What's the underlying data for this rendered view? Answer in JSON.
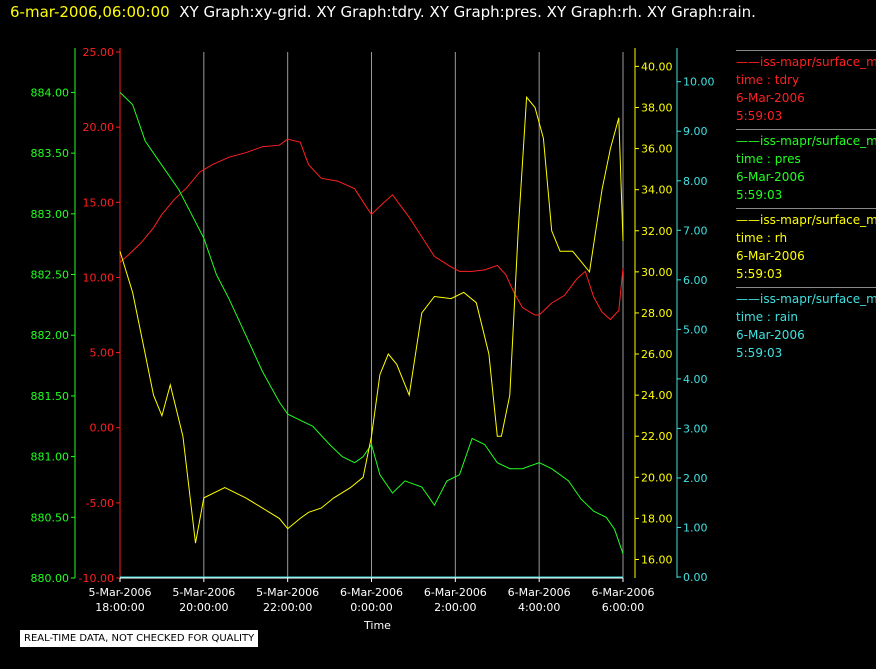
{
  "header": {
    "date_label": "6-mar-2006,06:00:00",
    "graph_labels": "XY Graph:xy-grid.  XY Graph:tdry.  XY Graph:pres.  XY Graph:rh.  XY Graph:rain."
  },
  "notice": "REAL-TIME DATA, NOT CHECKED FOR QUALITY",
  "legend": [
    {
      "line": "——iss-mapr/surface_m",
      "var": "time : tdry",
      "date": "6-Mar-2006",
      "time": "5:59:03",
      "color": "#ff2020"
    },
    {
      "line": "——iss-mapr/surface_m",
      "var": "time : pres",
      "date": "6-Mar-2006",
      "time": "5:59:03",
      "color": "#20ff20"
    },
    {
      "line": "——iss-mapr/surface_m",
      "var": "time : rh",
      "date": "6-Mar-2006",
      "time": "5:59:03",
      "color": "#ffff00"
    },
    {
      "line": "——iss-mapr/surface_m",
      "var": "time : rain",
      "date": "6-Mar-2006",
      "time": "5:59:03",
      "color": "#40e0e0"
    }
  ],
  "chart_data": {
    "type": "line",
    "xlabel": "Time",
    "x_ticks": [
      {
        "l1": "5-Mar-2006",
        "l2": "18:00:00",
        "h": 18
      },
      {
        "l1": "5-Mar-2006",
        "l2": "20:00:00",
        "h": 20
      },
      {
        "l1": "5-Mar-2006",
        "l2": "22:00:00",
        "h": 22
      },
      {
        "l1": "6-Mar-2006",
        "l2": "0:00:00",
        "h": 24
      },
      {
        "l1": "6-Mar-2006",
        "l2": "2:00:00",
        "h": 26
      },
      {
        "l1": "6-Mar-2006",
        "l2": "4:00:00",
        "h": 28
      },
      {
        "l1": "6-Mar-2006",
        "l2": "6:00:00",
        "h": 30
      }
    ],
    "xlim": [
      18,
      30
    ],
    "grid": true,
    "axes": {
      "pres": {
        "ticks": [
          "880.00",
          "880.50",
          "881.00",
          "881.50",
          "882.00",
          "882.50",
          "883.00",
          "883.50",
          "884.00"
        ],
        "lim": [
          880,
          884.333
        ],
        "color": "#20ff20"
      },
      "tdry": {
        "ticks": [
          "-10.00",
          "-5.00",
          "0.00",
          "5.00",
          "10.00",
          "15.00",
          "20.00",
          "25.00"
        ],
        "lim": [
          -10,
          25
        ],
        "color": "#ff2020"
      },
      "rh": {
        "ticks": [
          "16.00",
          "18.00",
          "20.00",
          "22.00",
          "24.00",
          "26.00",
          "28.00",
          "30.00",
          "32.00",
          "34.00",
          "36.00",
          "38.00",
          "40.00"
        ],
        "lim": [
          15.1,
          40.7
        ],
        "color": "#ffff00"
      },
      "rain": {
        "ticks": [
          "0.00",
          "1.00",
          "2.00",
          "3.00",
          "4.00",
          "5.00",
          "6.00",
          "7.00",
          "8.00",
          "9.00",
          "10.00"
        ],
        "lim": [
          -0.02,
          10.6
        ],
        "color": "#40e0e0"
      }
    },
    "series": [
      {
        "name": "tdry",
        "axis": "tdry",
        "color": "#ff2020",
        "x": [
          18,
          18.2,
          18.5,
          18.8,
          19,
          19.3,
          19.6,
          19.9,
          20.2,
          20.6,
          21,
          21.4,
          21.8,
          22,
          22.3,
          22.5,
          22.8,
          23.2,
          23.6,
          23.9,
          24,
          24.3,
          24.5,
          24.9,
          25.2,
          25.5,
          25.9,
          26.1,
          26.4,
          26.7,
          27,
          27.2,
          27.4,
          27.6,
          27.9,
          28,
          28.3,
          28.6,
          28.9,
          29.1,
          29.3,
          29.5,
          29.7,
          29.9,
          30
        ],
        "y": [
          11,
          11.5,
          12.3,
          13.3,
          14.2,
          15.2,
          16,
          17,
          17.5,
          18,
          18.3,
          18.7,
          18.8,
          19.2,
          19,
          17.5,
          16.6,
          16.4,
          15.9,
          14.6,
          14.2,
          15,
          15.5,
          14,
          12.7,
          11.4,
          10.7,
          10.4,
          10.4,
          10.5,
          10.8,
          10.2,
          9,
          8,
          7.5,
          7.5,
          8.3,
          8.8,
          9.9,
          10.4,
          8.7,
          7.7,
          7.2,
          7.8,
          10.6
        ]
      },
      {
        "name": "pres",
        "axis": "pres",
        "color": "#20ff20",
        "x": [
          18,
          18.3,
          18.6,
          19,
          19.4,
          19.7,
          20,
          20.3,
          20.6,
          21,
          21.4,
          21.8,
          22,
          22.3,
          22.6,
          23,
          23.3,
          23.6,
          23.8,
          24,
          24.2,
          24.5,
          24.8,
          25.2,
          25.5,
          25.8,
          26.1,
          26.4,
          26.7,
          27,
          27.3,
          27.6,
          28,
          28.3,
          28.7,
          29,
          29.3,
          29.6,
          29.8,
          30
        ],
        "y": [
          884,
          883.9,
          883.6,
          883.4,
          883.2,
          883,
          882.8,
          882.5,
          882.3,
          882,
          881.7,
          881.45,
          881.35,
          881.3,
          881.25,
          881.1,
          881,
          880.95,
          881,
          881.1,
          880.85,
          880.7,
          880.8,
          880.75,
          880.6,
          880.8,
          880.85,
          881.15,
          881.1,
          880.95,
          880.9,
          880.9,
          880.95,
          880.9,
          880.8,
          880.65,
          880.55,
          880.5,
          880.4,
          880.2
        ]
      },
      {
        "name": "rh",
        "axis": "rh",
        "color": "#ffff00",
        "x": [
          18,
          18.3,
          18.6,
          18.8,
          19,
          19.2,
          19.5,
          19.8,
          20,
          20.5,
          21,
          21.4,
          21.8,
          22,
          22.3,
          22.5,
          22.8,
          23.1,
          23.5,
          23.8,
          24,
          24.2,
          24.4,
          24.6,
          24.9,
          25.2,
          25.5,
          25.9,
          26.2,
          26.5,
          26.8,
          27,
          27.1,
          27.3,
          27.5,
          27.7,
          27.9,
          28.1,
          28.3,
          28.5,
          28.8,
          29,
          29.2,
          29.5,
          29.7,
          29.9,
          30
        ],
        "y": [
          31,
          29,
          26,
          24,
          23,
          24.5,
          22,
          16.8,
          19,
          19.5,
          19,
          18.5,
          18,
          17.5,
          18,
          18.3,
          18.5,
          19,
          19.5,
          20,
          22,
          25,
          26,
          25.5,
          24,
          28,
          28.8,
          28.7,
          29,
          28.5,
          26,
          22,
          22,
          24,
          32,
          38.5,
          38,
          36.5,
          32,
          31,
          31,
          30.5,
          30,
          34,
          36,
          37.5,
          31.5
        ]
      },
      {
        "name": "rain",
        "axis": "rain",
        "color": "#40e0e0",
        "x": [
          18,
          30
        ],
        "y": [
          0,
          0
        ]
      }
    ]
  }
}
